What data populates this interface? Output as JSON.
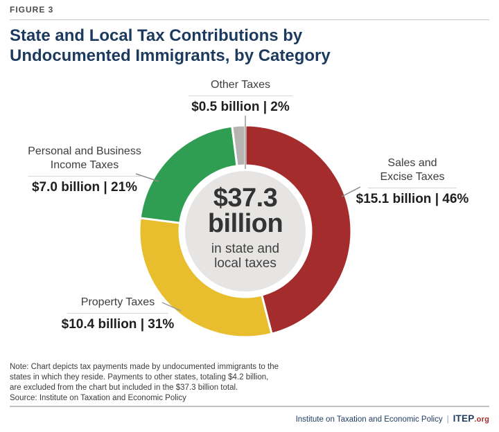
{
  "figure": {
    "label": "FIGURE 3"
  },
  "title": {
    "line1": "State and Local Tax Contributions by",
    "line2": "Undocumented Immigrants, by Category"
  },
  "chart_data": {
    "type": "pie",
    "subtype": "donut",
    "title": "State and Local Tax Contributions by Undocumented Immigrants, by Category",
    "direction": "clockwise",
    "start_angle_deg_from_top": 0,
    "legend_position": "callout-labels",
    "center_label": {
      "value": "$37.3",
      "unit": "billion",
      "caption_line1": "in state and",
      "caption_line2": "local taxes"
    },
    "total_billion": 37.3,
    "slices": [
      {
        "id": "sales_excise",
        "label": "Sales and Excise Taxes",
        "label_lines": [
          "Sales and",
          "Excise Taxes"
        ],
        "value_billion": 15.1,
        "percent": 46,
        "value_text": "$15.1 billion | 46%",
        "color": "#a52c2c"
      },
      {
        "id": "property",
        "label": "Property Taxes",
        "label_lines": [
          "Property Taxes"
        ],
        "value_billion": 10.4,
        "percent": 31,
        "value_text": "$10.4 billion | 31%",
        "color": "#e8bd2e"
      },
      {
        "id": "income",
        "label": "Personal and Business Income Taxes",
        "label_lines": [
          "Personal and Business",
          "Income Taxes"
        ],
        "value_billion": 7.0,
        "percent": 21,
        "value_text": "$7.0 billion | 21%",
        "color": "#2f9e52"
      },
      {
        "id": "other",
        "label": "Other Taxes",
        "label_lines": [
          "Other Taxes"
        ],
        "value_billion": 0.5,
        "percent": 2,
        "value_text": "$0.5 billion | 2%",
        "color": "#b5b4b2"
      }
    ],
    "center_circle_color": "#e6e5e3"
  },
  "note": {
    "lines": [
      "Note: Chart depicts tax payments made by undocumented immigrants to the",
      "states in which they reside. Payments to other states, totaling $4.2 billion,",
      "are excluded from the chart but included in the $37.3 billion total.",
      "Source: Institute on Taxation and Economic Policy"
    ]
  },
  "footer": {
    "org": "Institute on Taxation and Economic Policy",
    "separator": "|",
    "brand": "ITEP",
    "brand_suffix": ".org"
  },
  "colors": {
    "accent_navy": "#1c3a5e",
    "brand_red": "#a52c2c"
  }
}
